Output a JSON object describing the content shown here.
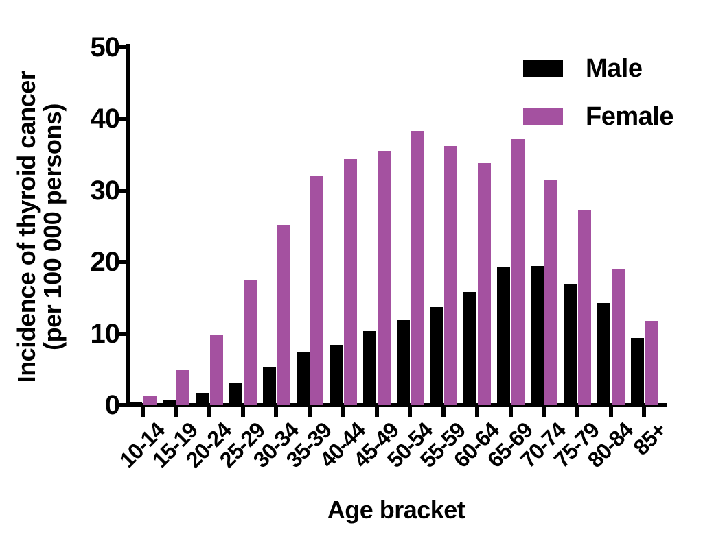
{
  "chart_data": {
    "type": "bar",
    "title": "",
    "xlabel": "Age bracket",
    "ylabel_lines": [
      "Incidence of thyroid cancer",
      "(per 100 000 persons)"
    ],
    "categories": [
      "10-14",
      "15-19",
      "20-24",
      "25-29",
      "30-34",
      "35-39",
      "40-44",
      "45-49",
      "50-54",
      "55-59",
      "60-64",
      "65-69",
      "70-74",
      "75-79",
      "80-84",
      "85+"
    ],
    "series": [
      {
        "name": "Male",
        "color": "#000000",
        "values": [
          0.4,
          0.7,
          1.7,
          3.1,
          5.3,
          7.4,
          8.4,
          10.3,
          11.9,
          13.7,
          15.8,
          19.3,
          19.4,
          16.9,
          14.3,
          9.4
        ]
      },
      {
        "name": "Female",
        "color": "#A451A0",
        "values": [
          1.2,
          4.9,
          9.9,
          17.5,
          25.2,
          32.0,
          34.4,
          35.5,
          38.3,
          36.2,
          33.8,
          37.1,
          31.5,
          27.3,
          18.9,
          11.8
        ]
      }
    ],
    "y_ticks": [
      0,
      10,
      20,
      30,
      40,
      50
    ],
    "ylim": [
      0,
      50
    ],
    "grid": false,
    "legend_position": "top-right",
    "bar_orientation": "vertical"
  }
}
